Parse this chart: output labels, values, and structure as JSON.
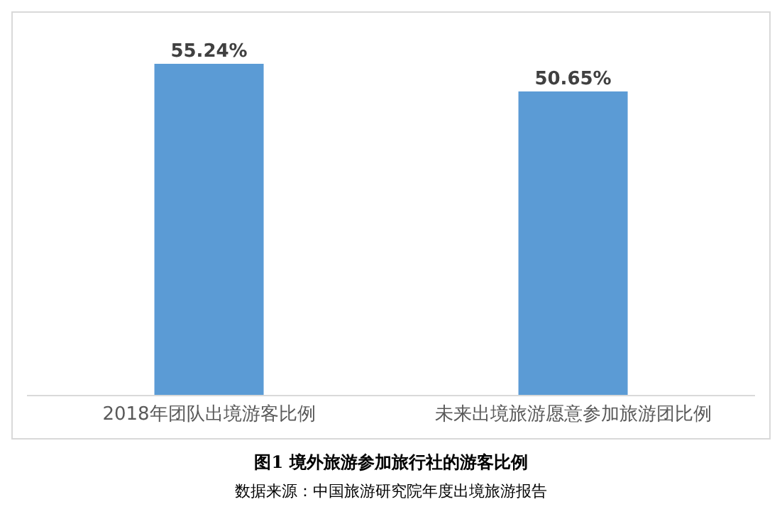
{
  "chart_data": {
    "type": "bar",
    "title": "图1 境外旅游参加旅行社的游客比例",
    "annotations": [
      "数据来源：中国旅游研究院年度出境旅游报告"
    ],
    "categories": [
      "2018年团队出境游客比例",
      "未来出境旅游愿意参加旅游团比例"
    ],
    "values": [
      55.24,
      50.65
    ],
    "color": "#5b9bd5",
    "value_labels": [
      "55.24%",
      "50.65%"
    ],
    "tick_labels": "x"
  }
}
